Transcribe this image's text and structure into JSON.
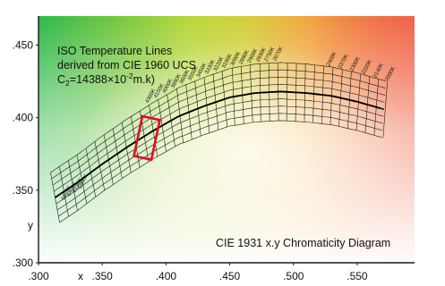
{
  "chart_data": {
    "type": "line",
    "title_lines": [
      "ISO Temperature Lines",
      "derived from CIE 1960 UCS"
    ],
    "title_formula": {
      "prefix": "C",
      "sub": "2",
      "mid": "=14388×10",
      "sup": "-2",
      "suffix": "m.k)"
    },
    "corner_label": "CIE 1931 x.y Chromaticity Diagram",
    "xlabel": "x",
    "ylabel": "y",
    "xlim": [
      0.3,
      0.595
    ],
    "ylim": [
      0.3,
      0.47
    ],
    "x_ticks": [
      ".300",
      ".350",
      ".400",
      ".450",
      ".500",
      ".550"
    ],
    "x_tick_values": [
      0.3,
      0.35,
      0.4,
      0.45,
      0.5,
      0.55
    ],
    "y_ticks": [
      ".300",
      ".350",
      ".400",
      ".450"
    ],
    "y_tick_values": [
      0.3,
      0.35,
      0.4,
      0.45
    ],
    "planckian_locus": {
      "name": "Planckian locus",
      "x": [
        0.313,
        0.33,
        0.35,
        0.37,
        0.39,
        0.41,
        0.43,
        0.45,
        0.47,
        0.49,
        0.51,
        0.53,
        0.55,
        0.57
      ],
      "y": [
        0.345,
        0.355,
        0.368,
        0.38,
        0.391,
        0.401,
        0.408,
        0.414,
        0.417,
        0.418,
        0.417,
        0.415,
        0.411,
        0.406
      ]
    },
    "isotherm_offsets": [
      -0.02,
      -0.015,
      -0.01,
      -0.005,
      0,
      0.005,
      0.01,
      0.015,
      0.02
    ],
    "isotherm_x": [
      0.313,
      0.32,
      0.327,
      0.334,
      0.341,
      0.348,
      0.355,
      0.362,
      0.369,
      0.376,
      0.383,
      0.39,
      0.397,
      0.404,
      0.411,
      0.418,
      0.425,
      0.432,
      0.439,
      0.446,
      0.453,
      0.46,
      0.467,
      0.474,
      0.481,
      0.488,
      0.495,
      0.502,
      0.509,
      0.516,
      0.523,
      0.53,
      0.537,
      0.544,
      0.551,
      0.558,
      0.565,
      0.572
    ],
    "highlight_box": {
      "x": [
        0.378,
        0.392
      ],
      "y": [
        0.372,
        0.4
      ],
      "color": "#e01020"
    },
    "cct_labels_left": [
      "6650K",
      "6400K",
      "6190K",
      "5900K"
    ],
    "cct_labels_mid": [
      "4300K",
      "4150K",
      "4000K",
      "3880K",
      "3600K",
      "3550K",
      "3450K",
      "3330K",
      "3220K",
      "3160K",
      "3090K",
      "2990K",
      "2900K",
      "2830K",
      "2750K",
      "2670K"
    ],
    "cct_labels_right": [
      "2400K",
      "2370K",
      "2300K",
      "2220K",
      "2140K",
      "2000K"
    ],
    "colors": {
      "axis": "#1a1a1a",
      "grid_line": "#1a1a1a",
      "frame_border": "#cccccc"
    },
    "gradient": {
      "top_left": "#2db84a",
      "top_mid": "#b8d63a",
      "top_right": "#f2c83a",
      "right_mid": "#f08a3a",
      "bottom_right": "#f05a4a",
      "center": "#fffdf5",
      "bottom_left": "#ffffff"
    }
  }
}
